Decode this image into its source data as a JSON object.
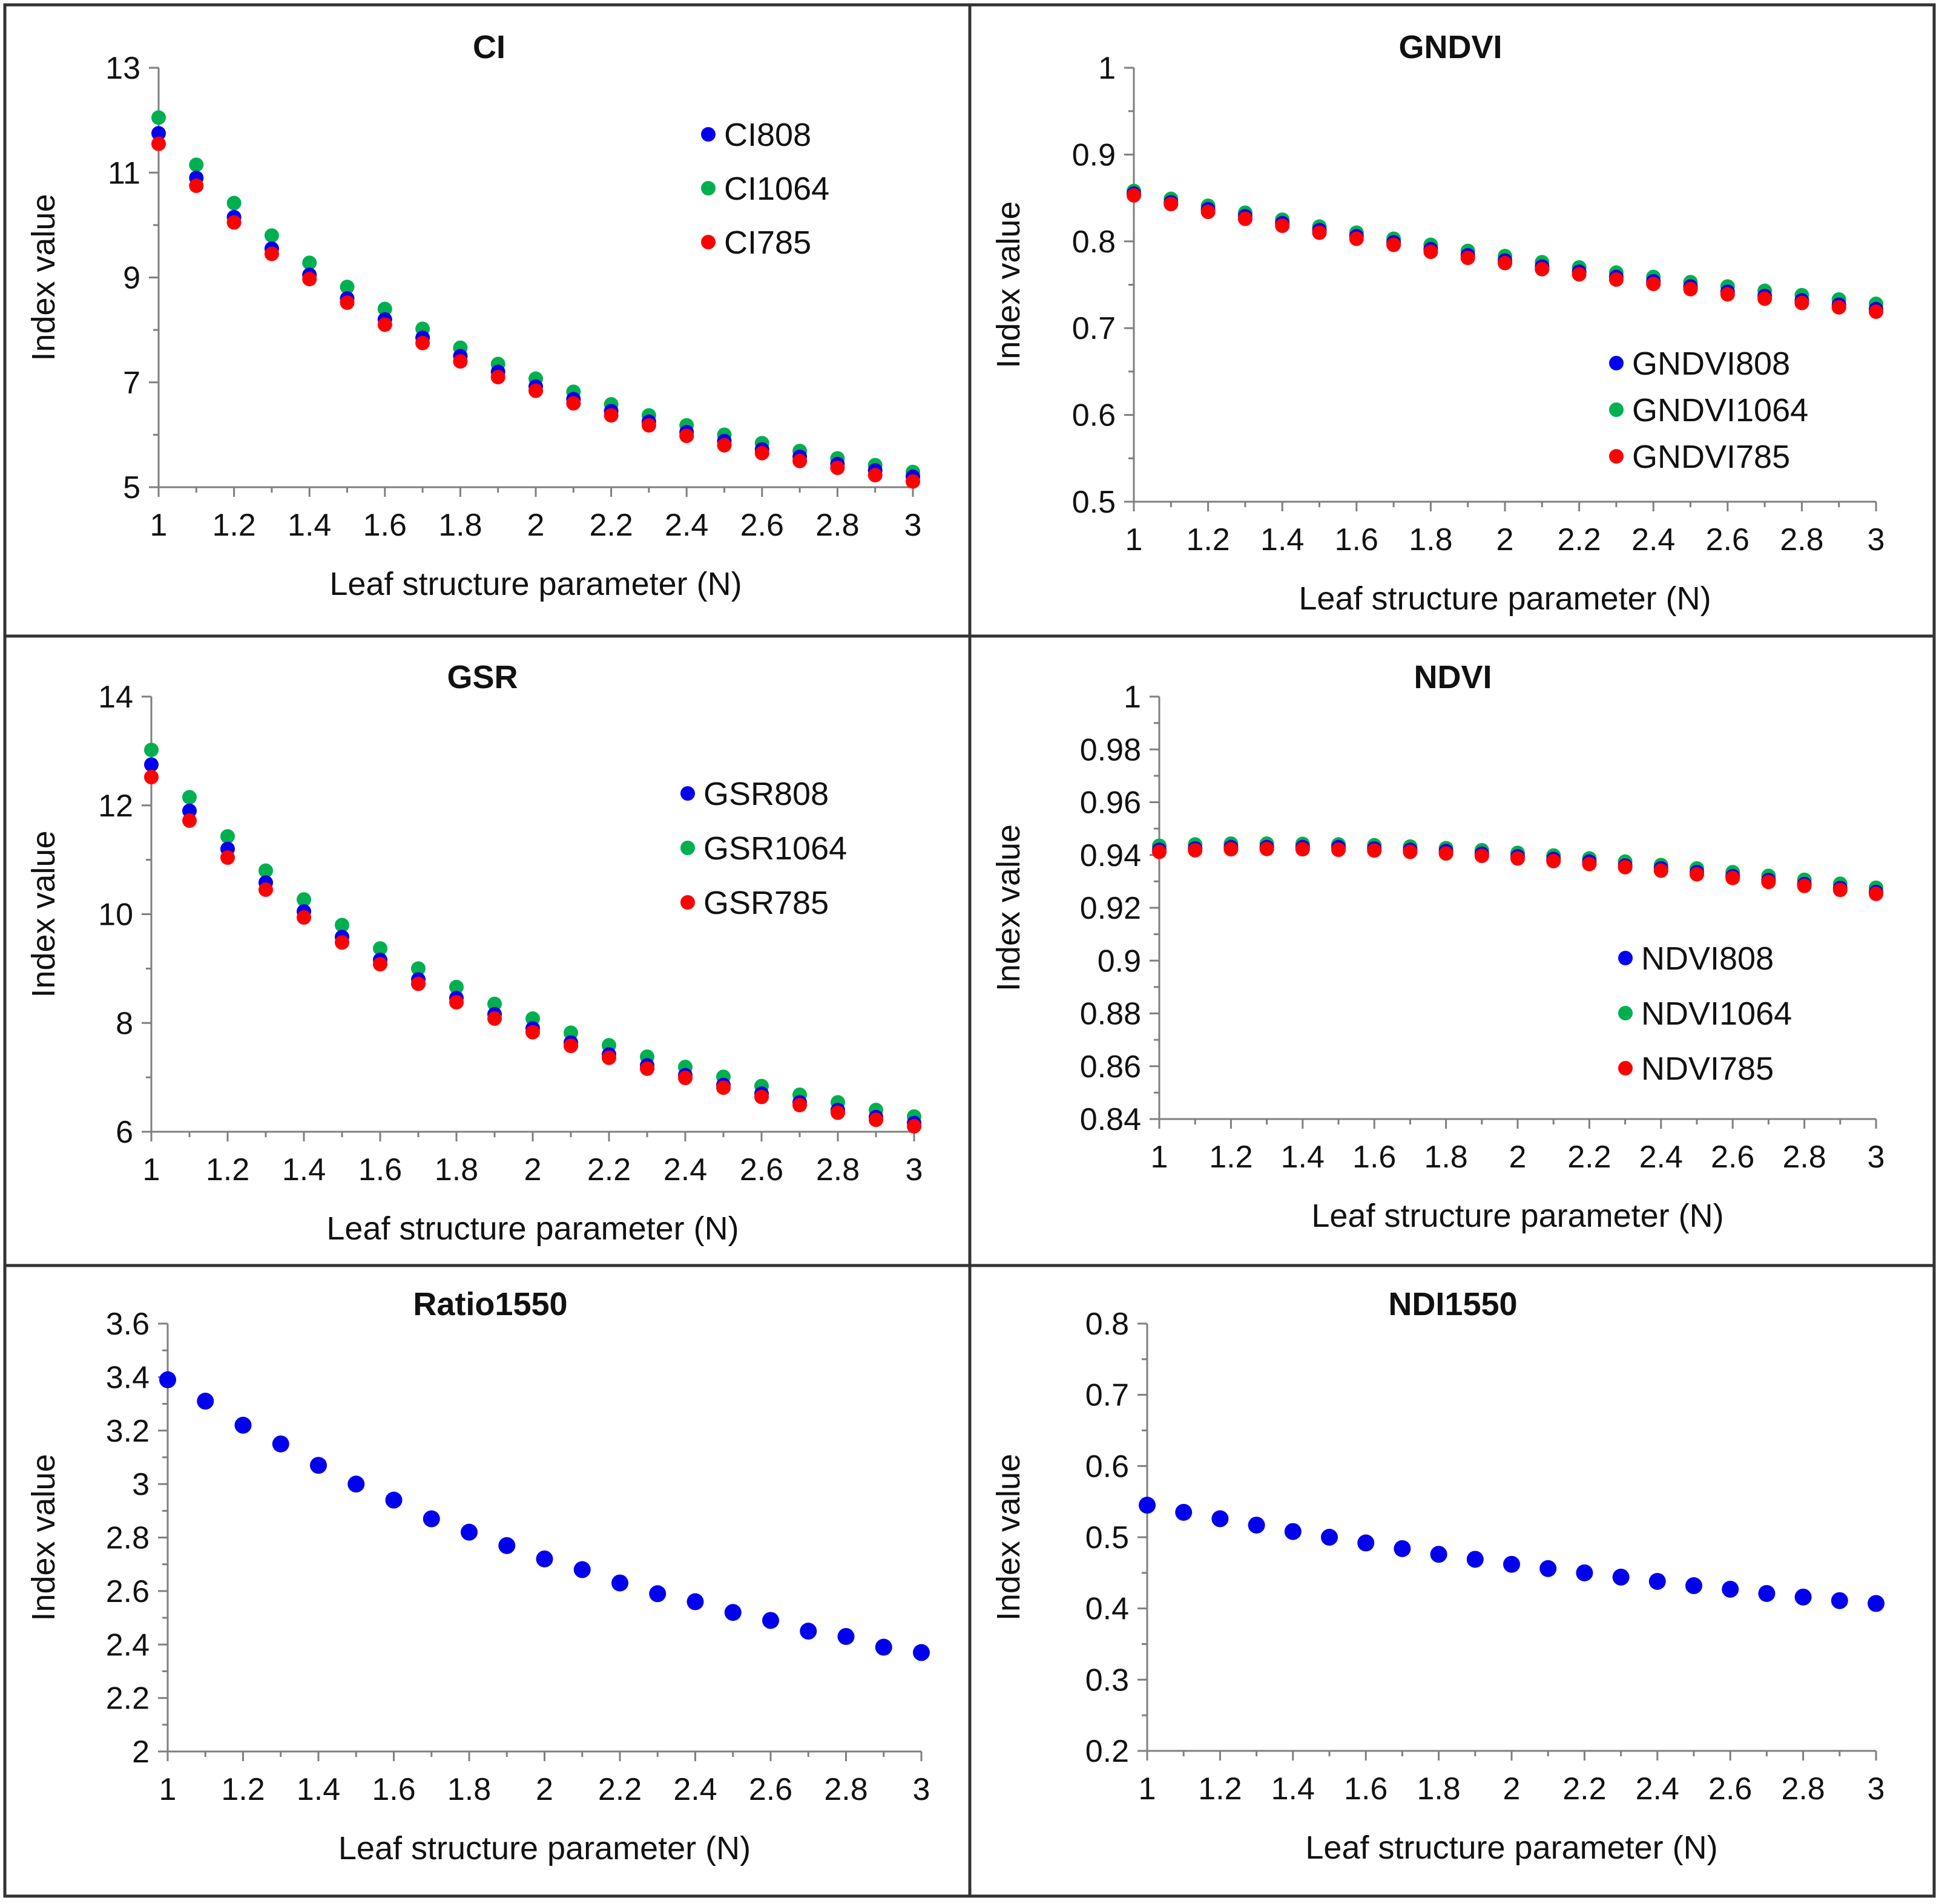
{
  "figure": {
    "colors": {
      "s808": "#0000ee",
      "s1064": "#00b050",
      "s785": "#ff0000",
      "single": "#0000ee",
      "axis": "#7f7f7f",
      "border": "#333333"
    }
  },
  "chart_data": [
    {
      "id": "ci",
      "type": "scatter",
      "title": "CI",
      "xlabel": "Leaf structure parameter (N)",
      "ylabel": "Index value",
      "xlim": [
        1,
        3
      ],
      "ylim": [
        5,
        13
      ],
      "xticks": [
        "1",
        "1.2",
        "1.4",
        "1.6",
        "1.8",
        "2",
        "2.2",
        "2.4",
        "2.6",
        "2.8",
        "3"
      ],
      "yticks": [
        "5",
        "7",
        "9",
        "11",
        "13"
      ],
      "legend_position": "top-right",
      "x": [
        1,
        1.1,
        1.2,
        1.3,
        1.4,
        1.5,
        1.6,
        1.7,
        1.8,
        1.9,
        2,
        2.1,
        2.2,
        2.3,
        2.4,
        2.5,
        2.6,
        2.7,
        2.8,
        2.9,
        3
      ],
      "series": [
        {
          "name": "CI808",
          "color_key": "s808",
          "values": [
            11.75,
            10.9,
            10.15,
            9.55,
            9.05,
            8.6,
            8.2,
            7.85,
            7.5,
            7.2,
            6.92,
            6.68,
            6.45,
            6.25,
            6.05,
            5.88,
            5.72,
            5.58,
            5.44,
            5.32,
            5.2
          ]
        },
        {
          "name": "CI1064",
          "color_key": "s1064",
          "values": [
            12.05,
            11.15,
            10.42,
            9.8,
            9.28,
            8.82,
            8.4,
            8.02,
            7.66,
            7.35,
            7.07,
            6.82,
            6.58,
            6.37,
            6.18,
            6.0,
            5.84,
            5.69,
            5.55,
            5.42,
            5.29
          ]
        },
        {
          "name": "CI785",
          "color_key": "s785",
          "values": [
            11.55,
            10.75,
            10.05,
            9.45,
            8.97,
            8.52,
            8.1,
            7.75,
            7.4,
            7.1,
            6.84,
            6.6,
            6.37,
            6.18,
            5.98,
            5.8,
            5.65,
            5.5,
            5.37,
            5.23,
            5.11
          ]
        }
      ]
    },
    {
      "id": "gndvi",
      "type": "scatter",
      "title": "GNDVI",
      "xlabel": "Leaf structure parameter (N)",
      "ylabel": "Index value",
      "xlim": [
        1,
        3
      ],
      "ylim": [
        0.5,
        1
      ],
      "xticks": [
        "1",
        "1.2",
        "1.4",
        "1.6",
        "1.8",
        "2",
        "2.2",
        "2.4",
        "2.6",
        "2.8",
        "3"
      ],
      "yticks": [
        "0.5",
        "0.6",
        "0.7",
        "0.8",
        "0.9",
        "1"
      ],
      "legend_position": "bottom-right",
      "x": [
        1,
        1.1,
        1.2,
        1.3,
        1.4,
        1.5,
        1.6,
        1.7,
        1.8,
        1.9,
        2,
        2.1,
        2.2,
        2.3,
        2.4,
        2.5,
        2.6,
        2.7,
        2.8,
        2.9,
        3
      ],
      "series": [
        {
          "name": "GNDVI808",
          "color_key": "s808",
          "values": [
            0.855,
            0.845,
            0.837,
            0.829,
            0.821,
            0.813,
            0.806,
            0.799,
            0.791,
            0.784,
            0.778,
            0.771,
            0.765,
            0.759,
            0.754,
            0.748,
            0.742,
            0.737,
            0.732,
            0.727,
            0.722
          ]
        },
        {
          "name": "GNDVI1064",
          "color_key": "s1064",
          "values": [
            0.858,
            0.849,
            0.841,
            0.833,
            0.825,
            0.817,
            0.81,
            0.803,
            0.796,
            0.789,
            0.783,
            0.776,
            0.77,
            0.764,
            0.759,
            0.753,
            0.748,
            0.743,
            0.738,
            0.733,
            0.728
          ]
        },
        {
          "name": "GNDVI785",
          "color_key": "s785",
          "values": [
            0.853,
            0.843,
            0.834,
            0.826,
            0.818,
            0.81,
            0.803,
            0.796,
            0.788,
            0.781,
            0.775,
            0.768,
            0.762,
            0.756,
            0.751,
            0.745,
            0.739,
            0.734,
            0.729,
            0.724,
            0.719
          ]
        }
      ]
    },
    {
      "id": "gsr",
      "type": "scatter",
      "title": "GSR",
      "xlabel": "Leaf structure parameter (N)",
      "ylabel": "Index value",
      "xlim": [
        1,
        3
      ],
      "ylim": [
        6,
        14
      ],
      "xticks": [
        "1",
        "1.2",
        "1.4",
        "1.6",
        "1.8",
        "2",
        "2.2",
        "2.4",
        "2.6",
        "2.8",
        "3"
      ],
      "yticks": [
        "6",
        "8",
        "10",
        "12",
        "14"
      ],
      "legend_position": "top-right",
      "x": [
        1,
        1.1,
        1.2,
        1.3,
        1.4,
        1.5,
        1.6,
        1.7,
        1.8,
        1.9,
        2,
        2.1,
        2.2,
        2.3,
        2.4,
        2.5,
        2.6,
        2.7,
        2.8,
        2.9,
        3
      ],
      "series": [
        {
          "name": "GSR808",
          "color_key": "s808",
          "values": [
            12.75,
            11.9,
            11.2,
            10.58,
            10.05,
            9.58,
            9.16,
            8.8,
            8.46,
            8.16,
            7.9,
            7.64,
            7.42,
            7.22,
            7.04,
            6.86,
            6.7,
            6.54,
            6.4,
            6.27,
            6.16
          ]
        },
        {
          "name": "GSR1064",
          "color_key": "s1064",
          "values": [
            13.02,
            12.15,
            11.43,
            10.8,
            10.27,
            9.8,
            9.37,
            9.0,
            8.66,
            8.35,
            8.08,
            7.82,
            7.59,
            7.38,
            7.19,
            7.01,
            6.84,
            6.68,
            6.54,
            6.4,
            6.28
          ]
        },
        {
          "name": "GSR785",
          "color_key": "s785",
          "values": [
            12.52,
            11.72,
            11.04,
            10.45,
            9.94,
            9.48,
            9.08,
            8.72,
            8.38,
            8.08,
            7.83,
            7.58,
            7.36,
            7.16,
            6.99,
            6.81,
            6.64,
            6.49,
            6.35,
            6.22,
            6.1
          ]
        }
      ]
    },
    {
      "id": "ndvi",
      "type": "scatter",
      "title": "NDVI",
      "xlabel": "Leaf structure parameter (N)",
      "ylabel": "Index value",
      "xlim": [
        1,
        3
      ],
      "ylim": [
        0.84,
        1
      ],
      "xticks": [
        "1",
        "1.2",
        "1.4",
        "1.6",
        "1.8",
        "2",
        "2.2",
        "2.4",
        "2.6",
        "2.8",
        "3"
      ],
      "yticks": [
        "0.84",
        "0.86",
        "0.88",
        "0.9",
        "0.92",
        "0.94",
        "0.96",
        "0.98",
        "1"
      ],
      "legend_position": "bottom-right",
      "x": [
        1,
        1.1,
        1.2,
        1.3,
        1.4,
        1.5,
        1.6,
        1.7,
        1.8,
        1.9,
        2,
        2.1,
        2.2,
        2.3,
        2.4,
        2.5,
        2.6,
        2.7,
        2.8,
        2.9,
        3
      ],
      "series": [
        {
          "name": "NDVI808",
          "color_key": "s808",
          "values": [
            0.942,
            0.9425,
            0.943,
            0.943,
            0.943,
            0.943,
            0.9425,
            0.942,
            0.9415,
            0.9405,
            0.9395,
            0.9385,
            0.9375,
            0.936,
            0.935,
            0.9335,
            0.932,
            0.9305,
            0.929,
            0.9275,
            0.926
          ]
        },
        {
          "name": "NDVI1064",
          "color_key": "s1064",
          "values": [
            0.9435,
            0.944,
            0.9443,
            0.9443,
            0.9442,
            0.944,
            0.9437,
            0.9432,
            0.9426,
            0.9418,
            0.9408,
            0.9398,
            0.9387,
            0.9375,
            0.9362,
            0.9349,
            0.9335,
            0.9321,
            0.9306,
            0.9291,
            0.9276
          ]
        },
        {
          "name": "NDVI785",
          "color_key": "s785",
          "values": [
            0.9412,
            0.9418,
            0.9422,
            0.9423,
            0.9422,
            0.942,
            0.9417,
            0.9412,
            0.9406,
            0.9397,
            0.9387,
            0.9377,
            0.9366,
            0.9354,
            0.9341,
            0.9327,
            0.9313,
            0.9298,
            0.9283,
            0.9268,
            0.9253
          ]
        }
      ]
    },
    {
      "id": "ratio1550",
      "type": "scatter",
      "title": "Ratio1550",
      "xlabel": "Leaf structure parameter (N)",
      "ylabel": "Index value",
      "xlim": [
        1,
        3
      ],
      "ylim": [
        2,
        3.6
      ],
      "xticks": [
        "1",
        "1.2",
        "1.4",
        "1.6",
        "1.8",
        "2",
        "2.2",
        "2.4",
        "2.6",
        "2.8",
        "3"
      ],
      "yticks": [
        "2",
        "2.2",
        "2.4",
        "2.6",
        "2.8",
        "3",
        "3.2",
        "3.4",
        "3.6"
      ],
      "legend_position": "none",
      "x": [
        1,
        1.1,
        1.2,
        1.3,
        1.4,
        1.5,
        1.6,
        1.7,
        1.8,
        1.9,
        2,
        2.1,
        2.2,
        2.3,
        2.4,
        2.5,
        2.6,
        2.7,
        2.8,
        2.9,
        3
      ],
      "series": [
        {
          "name": "Ratio1550",
          "color_key": "single",
          "values": [
            3.39,
            3.31,
            3.22,
            3.15,
            3.07,
            3.0,
            2.94,
            2.87,
            2.82,
            2.77,
            2.72,
            2.68,
            2.63,
            2.59,
            2.56,
            2.52,
            2.49,
            2.45,
            2.43,
            2.39,
            2.37
          ]
        }
      ]
    },
    {
      "id": "ndi1550",
      "type": "scatter",
      "title": "NDI1550",
      "xlabel": "Leaf structure parameter (N)",
      "ylabel": "Index value",
      "xlim": [
        1,
        3
      ],
      "ylim": [
        0.2,
        0.8
      ],
      "xticks": [
        "1",
        "1.2",
        "1.4",
        "1.6",
        "1.8",
        "2",
        "2.2",
        "2.4",
        "2.6",
        "2.8",
        "3"
      ],
      "yticks": [
        "0.2",
        "0.3",
        "0.4",
        "0.5",
        "0.6",
        "0.7",
        "0.8"
      ],
      "legend_position": "none",
      "x": [
        1,
        1.1,
        1.2,
        1.3,
        1.4,
        1.5,
        1.6,
        1.7,
        1.8,
        1.9,
        2,
        2.1,
        2.2,
        2.3,
        2.4,
        2.5,
        2.6,
        2.7,
        2.8,
        2.9,
        3
      ],
      "series": [
        {
          "name": "NDI1550",
          "color_key": "single",
          "values": [
            0.545,
            0.535,
            0.526,
            0.517,
            0.508,
            0.5,
            0.492,
            0.484,
            0.476,
            0.469,
            0.462,
            0.456,
            0.45,
            0.444,
            0.438,
            0.432,
            0.427,
            0.421,
            0.416,
            0.411,
            0.407
          ]
        }
      ]
    }
  ]
}
